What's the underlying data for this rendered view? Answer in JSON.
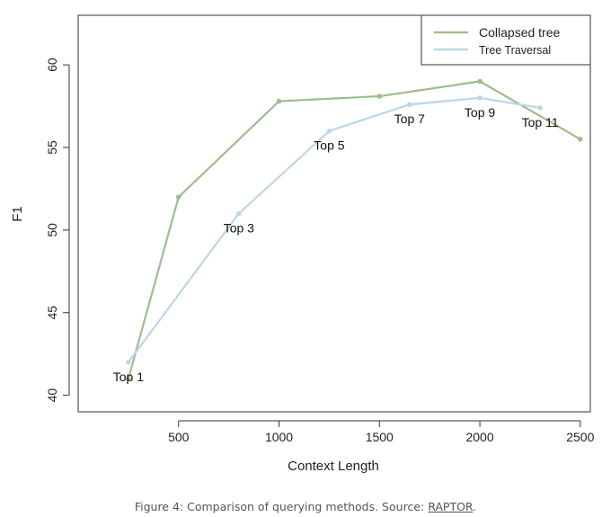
{
  "chart_data": {
    "type": "line",
    "xlabel": "Context Length",
    "ylabel": "F1",
    "xlim": [
      0,
      2550
    ],
    "ylim": [
      39,
      63
    ],
    "xticks": [
      500,
      1000,
      1500,
      2000,
      2500
    ],
    "yticks": [
      40,
      45,
      50,
      55,
      60
    ],
    "grid": false,
    "legend_position": "top-right",
    "series": [
      {
        "name": "Collapsed tree",
        "color": "#9ebd8f",
        "x": [
          250,
          500,
          1000,
          1500,
          2000,
          2500
        ],
        "y": [
          41.0,
          52.0,
          57.8,
          58.1,
          59.0,
          55.5
        ]
      },
      {
        "name": "Tree Traversal",
        "color": "#bcd6e6",
        "x": [
          250,
          800,
          1250,
          1650,
          2000,
          2300
        ],
        "y": [
          42.0,
          51.0,
          56.0,
          57.6,
          58.0,
          57.4
        ],
        "point_labels": [
          "Top 1",
          "Top 3",
          "Top 5",
          "Top 7",
          "Top 9",
          "Top 11"
        ]
      }
    ]
  },
  "caption": {
    "text": "Figure 4: Comparison of querying methods. Source: ",
    "link": "RAPTOR",
    "end": "."
  }
}
